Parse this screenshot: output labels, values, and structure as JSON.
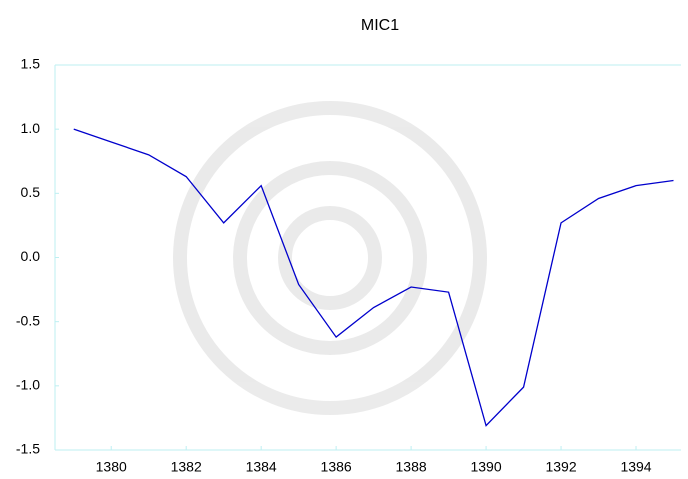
{
  "chart_data": {
    "type": "line",
    "title": "MIC1",
    "x": [
      1379,
      1380,
      1381,
      1382,
      1383,
      1384,
      1385,
      1386,
      1387,
      1388,
      1389,
      1390,
      1391,
      1392,
      1393,
      1394,
      1395
    ],
    "values": [
      1.0,
      0.9,
      0.8,
      0.63,
      0.27,
      0.56,
      -0.21,
      -0.62,
      -0.39,
      -0.23,
      -0.27,
      -1.31,
      -1.01,
      0.27,
      0.46,
      0.56,
      0.6
    ],
    "color": "#0000cc",
    "xlim": [
      1378.5,
      1395.2
    ],
    "xticks": [
      1380,
      1382,
      1384,
      1386,
      1388,
      1390,
      1392,
      1394
    ],
    "ylim": [
      -1.5,
      1.5
    ],
    "yticks": [
      -1.5,
      {
        "value": -1,
        "label": "-1.0"
      },
      -0.5,
      {
        "value": 0,
        "label": "0.0"
      },
      0.5,
      {
        "value": 1,
        "label": "1.0"
      },
      1.5
    ],
    "grid": false
  }
}
